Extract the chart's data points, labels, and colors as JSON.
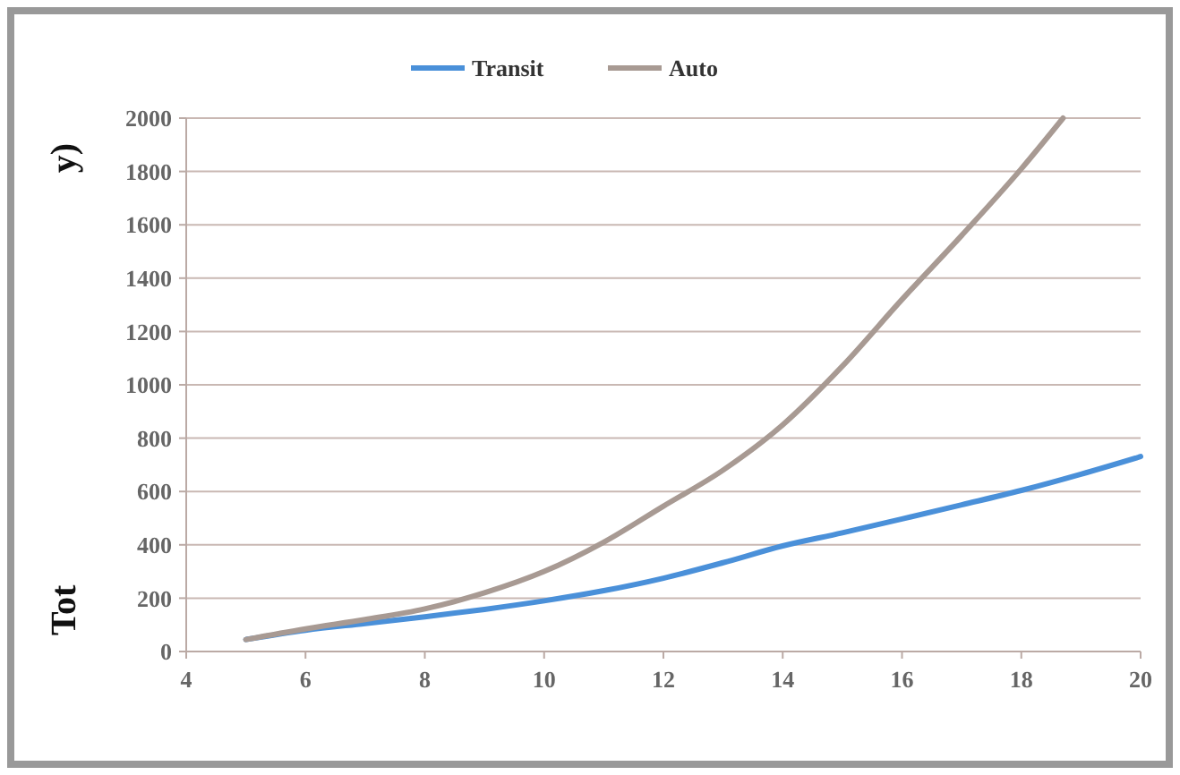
{
  "chart_data": {
    "type": "line",
    "annotations": [
      "Tot",
      "y)"
    ],
    "series": [
      {
        "name": "Transit",
        "color": "#4a90d9",
        "x": [
          5,
          6,
          7,
          8,
          9,
          10,
          11,
          12,
          13,
          14,
          15,
          16,
          17,
          18,
          19,
          20
        ],
        "values": [
          45,
          80,
          105,
          130,
          158,
          190,
          228,
          275,
          333,
          396,
          445,
          497,
          550,
          604,
          665,
          731
        ]
      },
      {
        "name": "Auto",
        "color": "#a89a93",
        "x": [
          5,
          6,
          7,
          8,
          9,
          10,
          11,
          12,
          13,
          14,
          15,
          16,
          17,
          18,
          18.7
        ],
        "values": [
          45,
          85,
          120,
          160,
          220,
          300,
          410,
          545,
          680,
          850,
          1070,
          1320,
          1560,
          1810,
          2000
        ]
      }
    ],
    "xlim": [
      4,
      20
    ],
    "xticks": [
      4,
      6,
      8,
      10,
      12,
      14,
      16,
      18,
      20
    ],
    "ylim": [
      0,
      2000
    ],
    "yticks": [
      0,
      200,
      400,
      600,
      800,
      1000,
      1200,
      1400,
      1600,
      1800,
      2000
    ],
    "grid": "y",
    "legend": "top",
    "marker": "none",
    "line_style": "solid"
  }
}
